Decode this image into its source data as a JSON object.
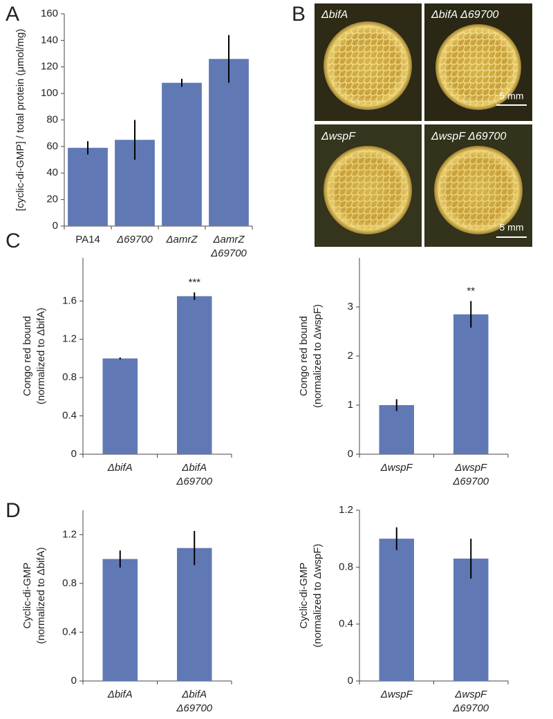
{
  "panel_labels": [
    "A",
    "B",
    "C",
    "D"
  ],
  "images": {
    "panels": [
      {
        "label": "ΔbifA"
      },
      {
        "label": "ΔbifA Δ69700"
      },
      {
        "label": "ΔwspF"
      },
      {
        "label": "ΔwspF Δ69700"
      }
    ],
    "scale_bars": [
      "5 mm",
      "5 mm"
    ]
  },
  "chart_data": [
    {
      "type": "bar",
      "ylabel": [
        "[cyclic-di-GMP] / total protein (μmol/mg)"
      ],
      "categories": [
        "PA14",
        "Δ69700",
        "ΔamrZ",
        "ΔamrZ Δ69700"
      ],
      "values": [
        59,
        65,
        108,
        126
      ],
      "errors": [
        5,
        15,
        3,
        18
      ],
      "color": "#6079b5",
      "ylim": [
        0,
        160
      ],
      "yticks": [
        0,
        20,
        40,
        60,
        80,
        100,
        120,
        140,
        160
      ]
    },
    {
      "type": "bar",
      "ylabel": [
        "Congo red bound",
        "(normalized to ΔbifA)"
      ],
      "categories": [
        "ΔbifA",
        "ΔbifA Δ69700"
      ],
      "values": [
        1.0,
        1.65
      ],
      "errors": [
        0.01,
        0.04
      ],
      "value_annotations": [
        null,
        "***"
      ],
      "color": "#6079b5",
      "ylim": [
        0,
        2.05
      ],
      "yticks": [
        0,
        0.4,
        0.8,
        1.2,
        1.6
      ]
    },
    {
      "type": "bar",
      "ylabel": [
        "Congo red bound",
        "(normalized to ΔwspF)"
      ],
      "categories": [
        "ΔwspF",
        "ΔwspF Δ69700"
      ],
      "values": [
        1.0,
        2.85
      ],
      "errors": [
        0.12,
        0.27
      ],
      "value_annotations": [
        null,
        "**"
      ],
      "color": "#6079b5",
      "ylim": [
        0,
        4
      ],
      "yticks": [
        0,
        1,
        2,
        3
      ]
    },
    {
      "type": "bar",
      "ylabel": [
        "Cyclic-di-GMP",
        "(normalized to ΔbifA)"
      ],
      "categories": [
        "ΔbifA",
        "ΔbifA Δ69700"
      ],
      "values": [
        1.0,
        1.09
      ],
      "errors": [
        0.07,
        0.14
      ],
      "color": "#6079b5",
      "ylim": [
        0,
        1.4
      ],
      "yticks": [
        0,
        0.4,
        0.8,
        1.2
      ]
    },
    {
      "type": "bar",
      "ylabel": [
        "Cyclic-di-GMP",
        "(normalized to ΔwspF)"
      ],
      "categories": [
        "ΔwspF",
        "ΔwspF Δ69700"
      ],
      "values": [
        1.0,
        0.86
      ],
      "errors": [
        0.08,
        0.14
      ],
      "color": "#6079b5",
      "ylim": [
        0,
        1.2
      ],
      "yticks": [
        0,
        0.4,
        0.8,
        1.2
      ]
    }
  ]
}
